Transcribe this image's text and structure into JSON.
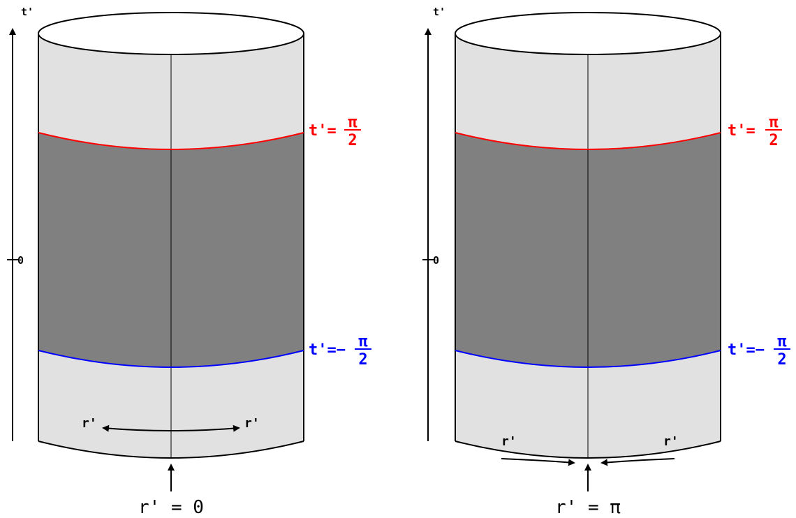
{
  "colors": {
    "cylinder_light": "#e1e1e1",
    "band_dark": "#808080",
    "outline": "#000000",
    "upper_boundary": "#ff0000",
    "lower_boundary": "#0000ff"
  },
  "left_panel": {
    "axis_label": "t'",
    "zero_tick": "0",
    "upper_label_prefix": "t'=",
    "upper_frac_num": "π",
    "upper_frac_den": "2",
    "lower_label_prefix": "t'=−",
    "lower_frac_num": "π",
    "lower_frac_den": "2",
    "arrow_label_left": "r'",
    "arrow_label_right": "r'",
    "bottom_label": "r' = 0"
  },
  "right_panel": {
    "axis_label": "t'",
    "zero_tick": "0",
    "upper_label_prefix": "t'=",
    "upper_frac_num": "π",
    "upper_frac_den": "2",
    "lower_label_prefix": "t'=−",
    "lower_frac_num": "π",
    "lower_frac_den": "2",
    "arrow_label_left": "r'",
    "arrow_label_right": "r'",
    "bottom_label": "r' = π"
  }
}
